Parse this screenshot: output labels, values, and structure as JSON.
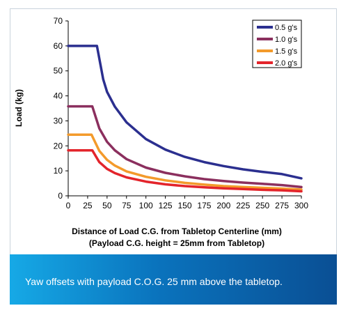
{
  "chart_data": {
    "type": "line",
    "xlabel": "Distance of Load C.G. from Tabletop Centerline (mm)",
    "xlabel2": "(Payload C.G. height = 25mm from Tabletop)",
    "ylabel": "Load (kg)",
    "xlim": [
      0,
      300
    ],
    "ylim": [
      0,
      70
    ],
    "x_ticks": [
      0,
      25,
      50,
      75,
      100,
      125,
      150,
      175,
      200,
      225,
      250,
      275,
      300
    ],
    "y_ticks": [
      0,
      10,
      20,
      30,
      40,
      50,
      60,
      70
    ],
    "grid": false,
    "legend_position": "top-right",
    "series": [
      {
        "name": "0.5 g's",
        "color": "#2b2f8f",
        "x": [
          0,
          37,
          45,
          50,
          60,
          75,
          100,
          125,
          150,
          175,
          200,
          225,
          250,
          275,
          300
        ],
        "y": [
          60,
          60,
          46.6,
          41.6,
          35.7,
          29.4,
          22.7,
          18.5,
          15.6,
          13.5,
          11.9,
          10.6,
          9.6,
          8.7,
          7.0
        ]
      },
      {
        "name": "1.0 g's",
        "color": "#8b2f5e",
        "x": [
          0,
          31,
          40,
          50,
          60,
          75,
          100,
          125,
          150,
          175,
          200,
          225,
          250,
          275,
          300
        ],
        "y": [
          35.8,
          35.8,
          27.0,
          21.6,
          18.2,
          14.7,
          11.3,
          9.2,
          7.8,
          6.7,
          5.9,
          5.3,
          4.8,
          4.3,
          3.5
        ]
      },
      {
        "name": "1.5 g's",
        "color": "#f39a2b",
        "x": [
          0,
          30,
          40,
          50,
          60,
          75,
          100,
          125,
          150,
          175,
          200,
          225,
          250,
          275,
          300
        ],
        "y": [
          24.5,
          24.5,
          18.0,
          14.4,
          12.1,
          9.8,
          7.6,
          6.2,
          5.2,
          4.5,
          3.9,
          3.5,
          3.2,
          2.9,
          2.5
        ]
      },
      {
        "name": "2.0 g's",
        "color": "#e3242b",
        "x": [
          0,
          31,
          40,
          50,
          60,
          75,
          100,
          125,
          150,
          175,
          200,
          225,
          250,
          275,
          300
        ],
        "y": [
          18.2,
          18.2,
          13.5,
          10.8,
          9.1,
          7.4,
          5.7,
          4.6,
          3.9,
          3.4,
          3.0,
          2.7,
          2.4,
          2.2,
          1.8
        ]
      }
    ]
  },
  "caption": "Yaw offsets with payload C.O.G. 25 mm above the tabletop."
}
